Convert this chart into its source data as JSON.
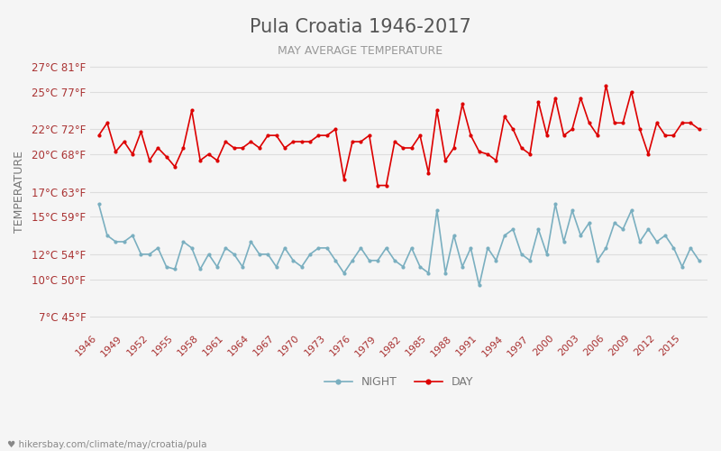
{
  "title": "Pula Croatia 1946-2017",
  "subtitle": "MAY AVERAGE TEMPERATURE",
  "ylabel": "TEMPERATURE",
  "xlabel_url": "hikersbay.com/climate/may/croatia/pula",
  "legend_night": "NIGHT",
  "legend_day": "DAY",
  "years": [
    1946,
    1947,
    1948,
    1949,
    1950,
    1951,
    1952,
    1953,
    1954,
    1955,
    1956,
    1957,
    1958,
    1959,
    1960,
    1961,
    1962,
    1963,
    1964,
    1965,
    1966,
    1967,
    1968,
    1969,
    1970,
    1971,
    1972,
    1973,
    1974,
    1975,
    1976,
    1977,
    1978,
    1979,
    1980,
    1981,
    1982,
    1983,
    1984,
    1985,
    1986,
    1987,
    1988,
    1989,
    1990,
    1991,
    1992,
    1993,
    1994,
    1995,
    1996,
    1997,
    1998,
    1999,
    2000,
    2001,
    2002,
    2003,
    2004,
    2005,
    2006,
    2007,
    2008,
    2009,
    2010,
    2011,
    2012,
    2013,
    2014,
    2015,
    2016,
    2017
  ],
  "day_temps": [
    21.5,
    22.5,
    20.2,
    21.0,
    20.0,
    21.8,
    19.5,
    20.5,
    19.8,
    19.0,
    20.5,
    23.5,
    19.5,
    20.0,
    19.5,
    21.0,
    20.5,
    20.5,
    21.0,
    20.5,
    21.5,
    21.5,
    20.5,
    21.0,
    21.0,
    21.0,
    21.5,
    21.5,
    22.0,
    18.0,
    21.0,
    21.0,
    21.5,
    17.5,
    17.5,
    21.0,
    20.5,
    20.5,
    21.5,
    18.5,
    23.5,
    19.5,
    20.5,
    24.0,
    21.5,
    20.2,
    20.0,
    19.5,
    23.0,
    22.0,
    20.5,
    20.0,
    24.2,
    21.5,
    24.5,
    21.5,
    22.0,
    24.5,
    22.5,
    21.5,
    25.5,
    22.5,
    22.5,
    25.0,
    22.0,
    20.0,
    22.5,
    21.5,
    21.5,
    22.5,
    22.5,
    22.0
  ],
  "night_temps": [
    16.0,
    13.5,
    13.0,
    13.0,
    13.5,
    12.0,
    12.0,
    12.5,
    11.0,
    10.8,
    13.0,
    12.5,
    10.8,
    12.0,
    11.0,
    12.5,
    12.0,
    11.0,
    13.0,
    12.0,
    12.0,
    11.0,
    12.5,
    11.5,
    11.0,
    12.0,
    12.5,
    12.5,
    11.5,
    10.5,
    11.5,
    12.5,
    11.5,
    11.5,
    12.5,
    11.5,
    11.0,
    12.5,
    11.0,
    10.5,
    15.5,
    10.5,
    13.5,
    11.0,
    12.5,
    9.5,
    12.5,
    11.5,
    13.5,
    14.0,
    12.0,
    11.5,
    14.0,
    12.0,
    16.0,
    13.0,
    15.5,
    13.5,
    14.5,
    11.5,
    12.5,
    14.5,
    14.0,
    15.5,
    13.0,
    14.0,
    13.0,
    13.5,
    12.5,
    11.0,
    12.5,
    11.5
  ],
  "yticks_c": [
    7,
    10,
    12,
    15,
    17,
    20,
    22,
    25,
    27
  ],
  "yticks_f": [
    45,
    50,
    54,
    59,
    63,
    68,
    72,
    77,
    81
  ],
  "ymin": 6,
  "ymax": 28,
  "xtick_years": [
    1946,
    1949,
    1952,
    1955,
    1958,
    1961,
    1964,
    1967,
    1970,
    1973,
    1976,
    1979,
    1982,
    1985,
    1988,
    1991,
    1994,
    1997,
    2000,
    2003,
    2006,
    2009,
    2012,
    2015
  ],
  "day_color": "#dd0000",
  "night_color": "#7aafc0",
  "bg_color": "#f5f5f5",
  "grid_color": "#dddddd",
  "title_color": "#555555",
  "subtitle_color": "#999999",
  "axis_label_color": "#aa3333",
  "tick_color": "#aa3333",
  "ylabel_color": "#777777",
  "url_color": "#888888",
  "url_icon": "♥"
}
